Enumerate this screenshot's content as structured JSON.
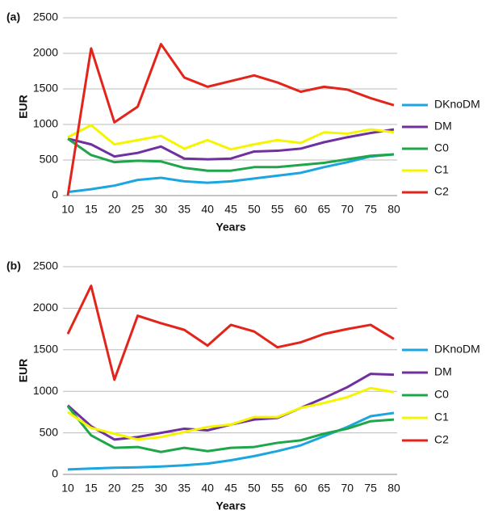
{
  "chart_data": [
    {
      "type": "line",
      "title": "(a)",
      "xlabel": "Years",
      "ylabel": "EUR",
      "categories": [
        "10",
        "15",
        "20",
        "25",
        "30",
        "35",
        "40",
        "45",
        "50",
        "55",
        "60",
        "65",
        "70",
        "75",
        "80"
      ],
      "ylim": [
        0,
        2500
      ],
      "yticks": [
        0,
        500,
        1000,
        1500,
        2000,
        2500
      ],
      "grid": true,
      "legend": "right",
      "series": [
        {
          "name": "DKnoDM",
          "color": "#1ba6df",
          "values": [
            50,
            90,
            140,
            220,
            250,
            200,
            180,
            200,
            240,
            280,
            320,
            400,
            470,
            550,
            580
          ]
        },
        {
          "name": "DM",
          "color": "#7030a0",
          "values": [
            800,
            720,
            550,
            600,
            690,
            520,
            510,
            520,
            620,
            630,
            660,
            750,
            820,
            880,
            930
          ]
        },
        {
          "name": "C0",
          "color": "#1fa64a",
          "values": [
            800,
            570,
            470,
            490,
            480,
            390,
            350,
            350,
            400,
            400,
            430,
            460,
            510,
            560,
            580
          ]
        },
        {
          "name": "C1",
          "color": "#f5f500",
          "values": [
            820,
            990,
            720,
            780,
            840,
            660,
            780,
            650,
            720,
            780,
            740,
            890,
            870,
            930,
            890
          ]
        },
        {
          "name": "C2",
          "color": "#e3241b",
          "values": [
            0,
            2070,
            1030,
            1250,
            2130,
            1660,
            1530,
            1610,
            1690,
            1590,
            1460,
            1530,
            1490,
            1370,
            1270
          ]
        }
      ]
    },
    {
      "type": "line",
      "title": "(b)",
      "xlabel": "Years",
      "ylabel": "EUR",
      "categories": [
        "10",
        "15",
        "20",
        "25",
        "30",
        "35",
        "40",
        "45",
        "50",
        "55",
        "60",
        "65",
        "70",
        "75",
        "80"
      ],
      "ylim": [
        0,
        2500
      ],
      "yticks": [
        0,
        500,
        1000,
        1500,
        2000,
        2500
      ],
      "grid": true,
      "legend": "right",
      "series": [
        {
          "name": "DKnoDM",
          "color": "#1ba6df",
          "values": [
            60,
            70,
            80,
            85,
            95,
            110,
            130,
            170,
            220,
            280,
            350,
            460,
            570,
            700,
            740
          ]
        },
        {
          "name": "DM",
          "color": "#7030a0",
          "values": [
            830,
            580,
            420,
            450,
            500,
            550,
            530,
            600,
            660,
            680,
            800,
            920,
            1050,
            1210,
            1200
          ]
        },
        {
          "name": "C0",
          "color": "#1fa64a",
          "values": [
            820,
            470,
            320,
            330,
            270,
            320,
            280,
            320,
            330,
            380,
            410,
            490,
            550,
            640,
            660
          ]
        },
        {
          "name": "C1",
          "color": "#f5f500",
          "values": [
            750,
            560,
            490,
            420,
            450,
            510,
            570,
            600,
            690,
            690,
            800,
            860,
            930,
            1040,
            990
          ]
        },
        {
          "name": "C2",
          "color": "#e3241b",
          "values": [
            1690,
            2270,
            1140,
            1910,
            1820,
            1740,
            1550,
            1800,
            1720,
            1530,
            1590,
            1690,
            1750,
            1800,
            1630
          ]
        }
      ]
    }
  ]
}
